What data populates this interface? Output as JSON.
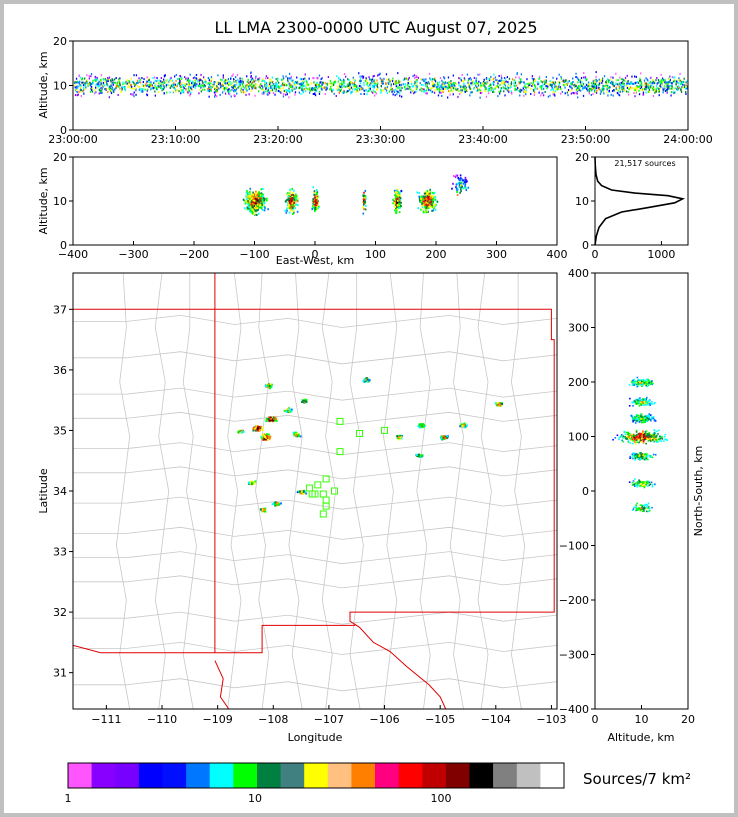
{
  "title": "LL LMA 2300-0000 UTC August 07, 2025",
  "colorbar": {
    "colors": [
      "#ff55ff",
      "#8800ff",
      "#7700ff",
      "#0000ff",
      "#0010ff",
      "#0077ff",
      "#00ffff",
      "#00ff00",
      "#008040",
      "#408080",
      "#ffff00",
      "#ffc080",
      "#ff8000",
      "#ff0080",
      "#ff0000",
      "#c00000",
      "#800000",
      "#000000",
      "#808080",
      "#c0c0c0",
      "#ffffff"
    ],
    "ticks": [
      "1",
      "10",
      "100"
    ],
    "label": "Sources/7 km²"
  },
  "chart_data": [
    {
      "type": "heatmap",
      "name": "time-height",
      "ylabel": "Altitude, km",
      "xlim": [
        "23:00:00",
        "24:00:00"
      ],
      "ylim": [
        0,
        20
      ],
      "xticks": [
        "23:00:00",
        "23:10:00",
        "23:20:00",
        "23:30:00",
        "23:40:00",
        "23:50:00",
        "24:00:00"
      ],
      "yticks": [
        "0",
        "10",
        "20"
      ],
      "core_altitude_km": 10
    },
    {
      "type": "heatmap",
      "name": "east-west-altitude",
      "xlabel": "East-West, km",
      "ylabel": "Altitude, km",
      "xlim": [
        -400,
        400
      ],
      "ylim": [
        0,
        20
      ],
      "xticks": [
        "−400",
        "−300",
        "−200",
        "−100",
        "0",
        "100",
        "200",
        "300",
        "400"
      ],
      "yticks": [
        "0",
        "10",
        "20"
      ],
      "clusters_km": [
        -100,
        -40,
        0,
        80,
        135,
        185,
        240
      ]
    },
    {
      "type": "line",
      "name": "altitude-histogram",
      "annotation": "21,517 sources",
      "xlim": [
        0,
        1400
      ],
      "ylim": [
        0,
        20
      ],
      "xticks": [
        "0",
        "1000"
      ],
      "yticks": [
        "0",
        "10",
        "20"
      ],
      "profile": [
        [
          0,
          0
        ],
        [
          20,
          2
        ],
        [
          60,
          4
        ],
        [
          160,
          6
        ],
        [
          400,
          7.5
        ],
        [
          800,
          8.5
        ],
        [
          1200,
          9.6
        ],
        [
          1320,
          10.5
        ],
        [
          1100,
          11.2
        ],
        [
          600,
          11.8
        ],
        [
          250,
          12.5
        ],
        [
          100,
          13.5
        ],
        [
          40,
          14.5
        ],
        [
          15,
          16
        ],
        [
          5,
          18
        ],
        [
          0,
          20
        ]
      ]
    },
    {
      "type": "scatter",
      "name": "plan-view",
      "xlabel": "Longitude",
      "ylabel": "Latitude",
      "xlim": [
        -111.6,
        -102.9
      ],
      "ylim": [
        30.4,
        37.6
      ],
      "xticks": [
        "−111",
        "−110",
        "−109",
        "−108",
        "−107",
        "−106",
        "−105",
        "−104",
        "−103"
      ],
      "yticks": [
        "31",
        "32",
        "33",
        "34",
        "35",
        "36",
        "37"
      ],
      "stations": [
        [
          -106.8,
          35.15
        ],
        [
          -106.45,
          34.95
        ],
        [
          -106.0,
          35.0
        ],
        [
          -106.8,
          34.65
        ],
        [
          -107.05,
          34.2
        ],
        [
          -107.2,
          34.1
        ],
        [
          -107.35,
          34.05
        ],
        [
          -107.25,
          33.95
        ],
        [
          -107.1,
          33.95
        ],
        [
          -106.9,
          34.0
        ],
        [
          -107.05,
          33.85
        ],
        [
          -107.05,
          33.75
        ],
        [
          -107.1,
          33.62
        ],
        [
          -107.3,
          33.95
        ]
      ],
      "clusters": [
        [
          -108.15,
          34.9
        ],
        [
          -108.3,
          35.05
        ],
        [
          -108.05,
          35.2
        ],
        [
          -107.75,
          35.35
        ],
        [
          -107.45,
          35.5
        ],
        [
          -107.6,
          34.95
        ],
        [
          -108.1,
          35.75
        ],
        [
          -108.4,
          34.15
        ],
        [
          -108.2,
          33.7
        ],
        [
          -107.95,
          33.8
        ],
        [
          -107.5,
          34.0
        ],
        [
          -106.35,
          35.85
        ],
        [
          -105.75,
          34.9
        ],
        [
          -105.35,
          35.1
        ],
        [
          -104.95,
          34.9
        ],
        [
          -104.6,
          35.1
        ],
        [
          -103.95,
          35.45
        ],
        [
          -105.4,
          34.6
        ],
        [
          -108.6,
          35.0
        ]
      ]
    },
    {
      "type": "heatmap",
      "name": "altitude-north-south",
      "xlabel": "Altitude, km",
      "ylabel": "North-South, km",
      "xlim": [
        0,
        20
      ],
      "ylim": [
        -400,
        400
      ],
      "xticks": [
        "0",
        "10",
        "20"
      ],
      "yticks": [
        "400",
        "300",
        "200",
        "100",
        "0",
        "−100",
        "−200",
        "−300",
        "−400"
      ],
      "bands_km": [
        200,
        165,
        135,
        100,
        65,
        15,
        -30
      ]
    }
  ]
}
